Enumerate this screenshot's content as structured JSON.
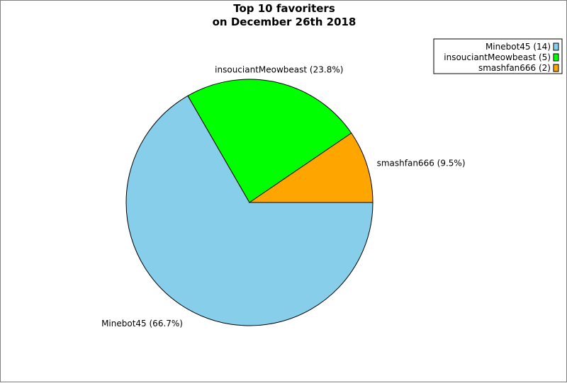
{
  "chart_data": {
    "type": "pie",
    "title": [
      "Top 10 favoriters",
      "on December 26th 2018"
    ],
    "start_angle_deg": 0,
    "direction": "clockwise",
    "legend_position": "top-right",
    "slices": [
      {
        "label": "Minebot45",
        "value": 14,
        "percent_label": "Minebot45 (66.7%)",
        "legend_label": "Minebot45 (14)",
        "color": "#87CEEB"
      },
      {
        "label": "insouciantMeowbeast",
        "value": 5,
        "percent_label": "insouciantMeowbeast (23.8%)",
        "legend_label": "insouciantMeowbeast (5)",
        "color": "#00FF00"
      },
      {
        "label": "smashfan666",
        "value": 2,
        "percent_label": "smashfan666 (9.5%)",
        "legend_label": "smashfan666 (2)",
        "color": "#FFA500"
      }
    ]
  }
}
